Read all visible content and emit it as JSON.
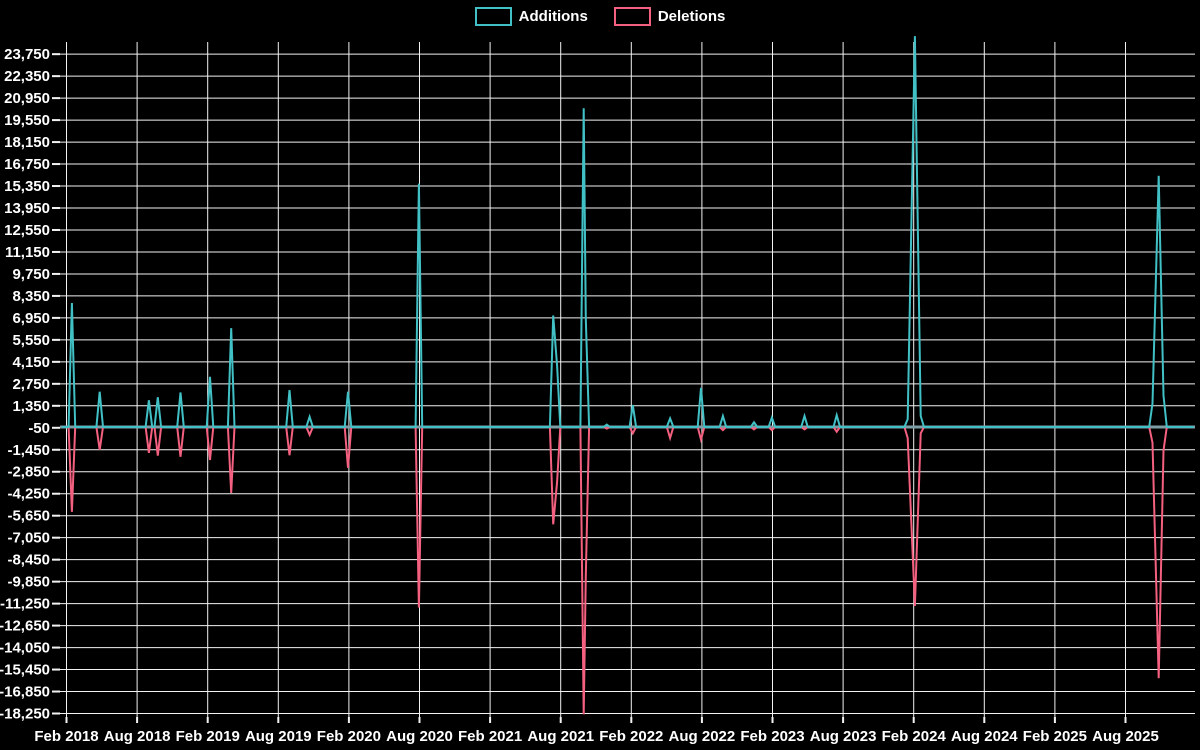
{
  "chart_data": {
    "type": "line",
    "title": "",
    "legend": [
      {
        "name": "Additions",
        "color": "#41c1c5"
      },
      {
        "name": "Deletions",
        "color": "#f4607f"
      }
    ],
    "background_color": "#000000",
    "grid_color": "#f2f2f2",
    "zero_line_color": "#7d9da5",
    "text_color": "#ffffff",
    "grid_on": true,
    "legend_position": "top-center",
    "ylim": [
      -18250,
      23750
    ],
    "y_tick_step": 1400,
    "y_tick_top": 23750,
    "y_tick_count": 31,
    "x_tick_labels": [
      "Feb 2018",
      "Aug 2018",
      "Feb 2019",
      "Aug 2019",
      "Feb 2020",
      "Aug 2020",
      "Feb 2021",
      "Aug 2021",
      "Feb 2022",
      "Aug 2022",
      "Feb 2023",
      "Aug 2023",
      "Feb 2024",
      "Aug 2024",
      "Feb 2025",
      "Aug 2025"
    ],
    "x_range_months": [
      -0.4,
      95.8
    ],
    "points": [
      {
        "date": "2018-02-15",
        "additions": 7900,
        "deletions": -5400
      },
      {
        "date": "2018-04-26",
        "additions": 2250,
        "deletions": -1450
      },
      {
        "date": "2018-09-01",
        "additions": 1700,
        "deletions": -1650
      },
      {
        "date": "2018-09-24",
        "additions": 1900,
        "deletions": -1820
      },
      {
        "date": "2018-11-22",
        "additions": 2200,
        "deletions": -1900
      },
      {
        "date": "2019-02-07",
        "additions": 3200,
        "deletions": -2100
      },
      {
        "date": "2019-04-01",
        "additions": 6300,
        "deletions": -4200
      },
      {
        "date": "2019-08-30",
        "additions": 2350,
        "deletions": -1800
      },
      {
        "date": "2019-10-21",
        "additions": 650,
        "deletions": -500
      },
      {
        "date": "2020-01-29",
        "additions": 2250,
        "deletions": -2600
      },
      {
        "date": "2020-07-30",
        "additions": 15500,
        "deletions": -11500
      },
      {
        "date": "2021-07-12",
        "additions": 7100,
        "deletions": -6200
      },
      {
        "date": "2021-07-22",
        "additions": 3900,
        "deletions": -3500
      },
      {
        "date": "2021-09-30",
        "additions": 20300,
        "deletions": -18300
      },
      {
        "date": "2021-10-05",
        "additions": 6900,
        "deletions": -9500
      },
      {
        "date": "2021-11-29",
        "additions": 150,
        "deletions": -100
      },
      {
        "date": "2022-02-05",
        "additions": 1400,
        "deletions": -400
      },
      {
        "date": "2022-05-10",
        "additions": 550,
        "deletions": -700
      },
      {
        "date": "2022-07-29",
        "additions": 2500,
        "deletions": -800
      },
      {
        "date": "2022-09-25",
        "additions": 700,
        "deletions": -200
      },
      {
        "date": "2022-12-14",
        "additions": 300,
        "deletions": -150
      },
      {
        "date": "2023-01-30",
        "additions": 600,
        "deletions": -200
      },
      {
        "date": "2023-04-23",
        "additions": 700,
        "deletions": -150
      },
      {
        "date": "2023-07-15",
        "additions": 750,
        "deletions": -300
      },
      {
        "date": "2024-01-16",
        "additions": 500,
        "deletions": -700
      },
      {
        "date": "2024-02-04",
        "additions": 24900,
        "deletions": -11400
      },
      {
        "date": "2024-02-19",
        "additions": 700,
        "deletions": -400
      },
      {
        "date": "2025-10-10",
        "additions": 1500,
        "deletions": -1000
      },
      {
        "date": "2025-10-26",
        "additions": 16000,
        "deletions": -16000
      },
      {
        "date": "2025-11-08",
        "additions": 2000,
        "deletions": -1500
      }
    ]
  }
}
